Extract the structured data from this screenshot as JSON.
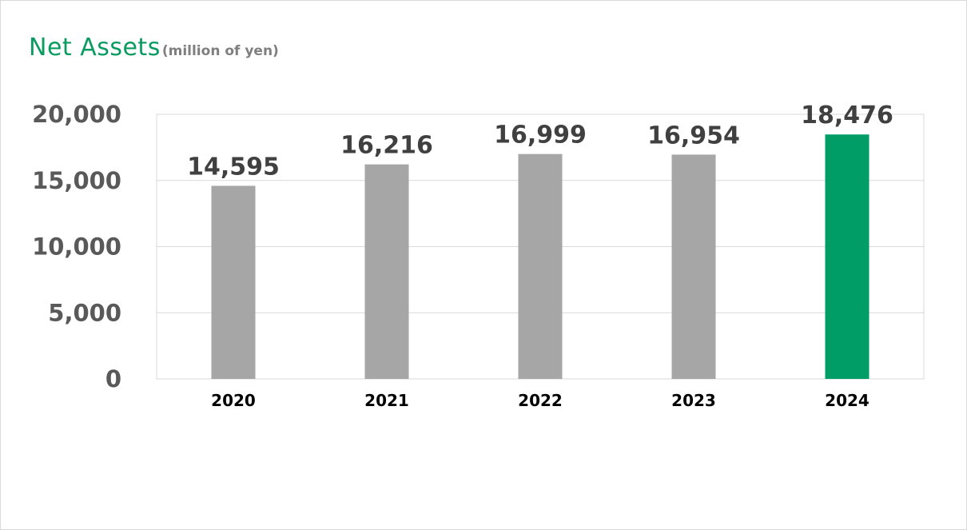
{
  "header": {
    "title": "Net Assets",
    "unit": "(million of yen)"
  },
  "chart_data": {
    "type": "bar",
    "title": "Net Assets",
    "ylabel": "",
    "xlabel": "",
    "categories": [
      "2020",
      "2021",
      "2022",
      "2023",
      "2024"
    ],
    "values": [
      14595,
      16216,
      16999,
      16954,
      18476
    ],
    "value_labels": [
      "14,595",
      "16,216",
      "16,999",
      "16,954",
      "18,476"
    ],
    "ylim": [
      0,
      20000
    ],
    "yticks": [
      0,
      5000,
      10000,
      15000,
      20000
    ],
    "ytick_labels": [
      "0",
      "5,000",
      "10,000",
      "15,000",
      "20,000"
    ],
    "grid": true,
    "colors": {
      "default_bar": "#a6a6a6",
      "highlight_bar": "#009e66",
      "highlight_category": "2024",
      "title": "#0a9b61",
      "gridline": "#d9d9d9"
    }
  }
}
